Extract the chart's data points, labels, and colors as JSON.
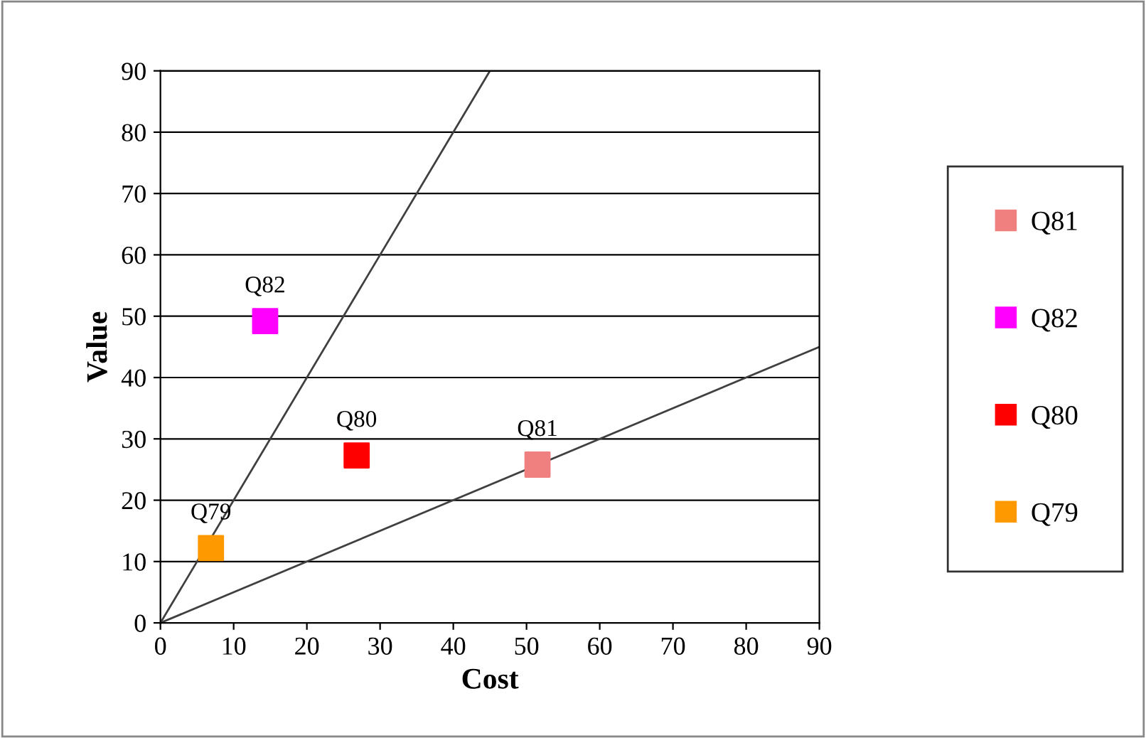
{
  "chart_data": {
    "type": "scatter",
    "xlabel": "Cost",
    "ylabel": "Value",
    "xlim": [
      0,
      90
    ],
    "ylim": [
      0,
      90
    ],
    "xticks": [
      0,
      10,
      20,
      30,
      40,
      50,
      60,
      70,
      80,
      90
    ],
    "yticks": [
      0,
      10,
      20,
      30,
      40,
      50,
      60,
      70,
      80,
      90
    ],
    "grid": "y",
    "legend": "right",
    "marker": "square",
    "series": [
      {
        "name": "Q81",
        "color": "#f08080",
        "x": [
          51.5
        ],
        "values": [
          25.8
        ]
      },
      {
        "name": "Q82",
        "color": "#ff00ff",
        "x": [
          14.3
        ],
        "values": [
          49.2
        ]
      },
      {
        "name": "Q80",
        "color": "#ff0000",
        "x": [
          26.8
        ],
        "values": [
          27.3
        ]
      },
      {
        "name": "Q79",
        "color": "#ff9900",
        "x": [
          6.9
        ],
        "values": [
          12.2
        ]
      },
      {
        "type": "line",
        "color": "#404040",
        "x": [
          0,
          45
        ],
        "values": [
          0,
          90
        ],
        "marker": "none"
      },
      {
        "type": "line",
        "color": "#404040",
        "x": [
          0,
          90
        ],
        "values": [
          0,
          45
        ],
        "marker": "none"
      }
    ]
  }
}
